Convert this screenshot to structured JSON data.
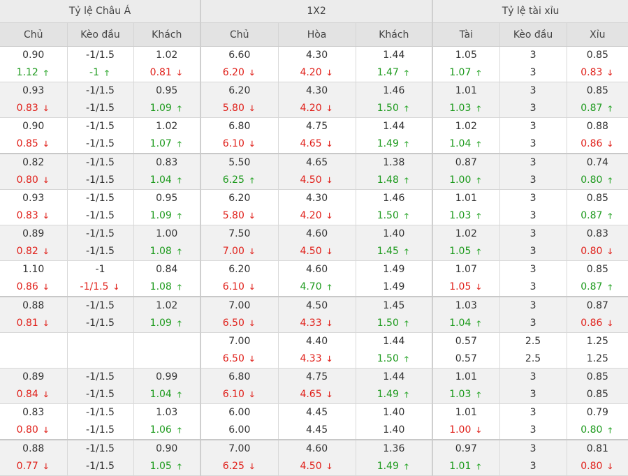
{
  "groups": [
    "Tỷ lệ Châu Á",
    "1X2",
    "Tỷ lệ tài xỉu"
  ],
  "columns": [
    "Chủ",
    "Kèo đầu",
    "Khách",
    "Chủ",
    "Hòa",
    "Khách",
    "Tài",
    "Kèo đầu",
    "Xỉu"
  ],
  "trend_icons": {
    "up": "arrow-up-icon",
    "down": "arrow-down-icon"
  },
  "colors": {
    "up": "#1d9a1d",
    "down": "#e0201a",
    "header_bg": "#e3e3e3",
    "row_alt_bg": "#f1f1f1"
  },
  "arrows": {
    "up": "🡑",
    "down": "🡓"
  },
  "rows": [
    {
      "open": [
        "0.90",
        "-1/1.5",
        "1.02",
        "6.60",
        "4.30",
        "1.44",
        "1.05",
        "3",
        "0.85"
      ],
      "close": [
        [
          "1.12",
          "up"
        ],
        [
          "-1",
          "up"
        ],
        [
          "0.81",
          "down"
        ],
        [
          "6.20",
          "down"
        ],
        [
          "4.20",
          "down"
        ],
        [
          "1.47",
          "up"
        ],
        [
          "1.07",
          "up"
        ],
        [
          "3",
          ""
        ],
        [
          "0.83",
          "down"
        ]
      ]
    },
    {
      "open": [
        "0.93",
        "-1/1.5",
        "0.95",
        "6.20",
        "4.30",
        "1.46",
        "1.01",
        "3",
        "0.85"
      ],
      "close": [
        [
          "0.83",
          "down"
        ],
        [
          "-1/1.5",
          ""
        ],
        [
          "1.09",
          "up"
        ],
        [
          "5.80",
          "down"
        ],
        [
          "4.20",
          "down"
        ],
        [
          "1.50",
          "up"
        ],
        [
          "1.03",
          "up"
        ],
        [
          "3",
          ""
        ],
        [
          "0.87",
          "up"
        ]
      ]
    },
    {
      "open": [
        "0.90",
        "-1/1.5",
        "1.02",
        "6.80",
        "4.75",
        "1.44",
        "1.02",
        "3",
        "0.88"
      ],
      "close": [
        [
          "0.85",
          "down"
        ],
        [
          "-1/1.5",
          ""
        ],
        [
          "1.07",
          "up"
        ],
        [
          "6.10",
          "down"
        ],
        [
          "4.65",
          "down"
        ],
        [
          "1.49",
          "up"
        ],
        [
          "1.04",
          "up"
        ],
        [
          "3",
          ""
        ],
        [
          "0.86",
          "down"
        ]
      ]
    },
    {
      "open": [
        "0.82",
        "-1/1.5",
        "0.83",
        "5.50",
        "4.65",
        "1.38",
        "0.87",
        "3",
        "0.74"
      ],
      "close": [
        [
          "0.80",
          "down"
        ],
        [
          "-1/1.5",
          ""
        ],
        [
          "1.04",
          "up"
        ],
        [
          "6.25",
          "up"
        ],
        [
          "4.50",
          "down"
        ],
        [
          "1.48",
          "up"
        ],
        [
          "1.00",
          "up"
        ],
        [
          "3",
          ""
        ],
        [
          "0.80",
          "up"
        ]
      ]
    },
    {
      "open": [
        "0.93",
        "-1/1.5",
        "0.95",
        "6.20",
        "4.30",
        "1.46",
        "1.01",
        "3",
        "0.85"
      ],
      "close": [
        [
          "0.83",
          "down"
        ],
        [
          "-1/1.5",
          ""
        ],
        [
          "1.09",
          "up"
        ],
        [
          "5.80",
          "down"
        ],
        [
          "4.20",
          "down"
        ],
        [
          "1.50",
          "up"
        ],
        [
          "1.03",
          "up"
        ],
        [
          "3",
          ""
        ],
        [
          "0.87",
          "up"
        ]
      ]
    },
    {
      "open": [
        "0.89",
        "-1/1.5",
        "1.00",
        "7.50",
        "4.60",
        "1.40",
        "1.02",
        "3",
        "0.83"
      ],
      "close": [
        [
          "0.82",
          "down"
        ],
        [
          "-1/1.5",
          ""
        ],
        [
          "1.08",
          "up"
        ],
        [
          "7.00",
          "down"
        ],
        [
          "4.50",
          "down"
        ],
        [
          "1.45",
          "up"
        ],
        [
          "1.05",
          "up"
        ],
        [
          "3",
          ""
        ],
        [
          "0.80",
          "down"
        ]
      ]
    },
    {
      "open": [
        "1.10",
        "-1",
        "0.84",
        "6.20",
        "4.60",
        "1.49",
        "1.07",
        "3",
        "0.85"
      ],
      "close": [
        [
          "0.86",
          "down"
        ],
        [
          "-1/1.5",
          "down"
        ],
        [
          "1.08",
          "up"
        ],
        [
          "6.10",
          "down"
        ],
        [
          "4.70",
          "up"
        ],
        [
          "1.49",
          ""
        ],
        [
          "1.05",
          "down"
        ],
        [
          "3",
          ""
        ],
        [
          "0.87",
          "up"
        ]
      ]
    },
    {
      "open": [
        "0.88",
        "-1/1.5",
        "1.02",
        "7.00",
        "4.50",
        "1.45",
        "1.03",
        "3",
        "0.87"
      ],
      "close": [
        [
          "0.81",
          "down"
        ],
        [
          "-1/1.5",
          ""
        ],
        [
          "1.09",
          "up"
        ],
        [
          "6.50",
          "down"
        ],
        [
          "4.33",
          "down"
        ],
        [
          "1.50",
          "up"
        ],
        [
          "1.04",
          "up"
        ],
        [
          "3",
          ""
        ],
        [
          "0.86",
          "down"
        ]
      ]
    },
    {
      "open": [
        "",
        "",
        "",
        "7.00",
        "4.40",
        "1.44",
        "0.57",
        "2.5",
        "1.25"
      ],
      "close": [
        [
          "",
          ""
        ],
        [
          "",
          ""
        ],
        [
          "",
          ""
        ],
        [
          "6.50",
          "down"
        ],
        [
          "4.33",
          "down"
        ],
        [
          "1.50",
          "up"
        ],
        [
          "0.57",
          ""
        ],
        [
          "2.5",
          ""
        ],
        [
          "1.25",
          ""
        ]
      ]
    },
    {
      "open": [
        "0.89",
        "-1/1.5",
        "0.99",
        "6.80",
        "4.75",
        "1.44",
        "1.01",
        "3",
        "0.85"
      ],
      "close": [
        [
          "0.84",
          "down"
        ],
        [
          "-1/1.5",
          ""
        ],
        [
          "1.04",
          "up"
        ],
        [
          "6.10",
          "down"
        ],
        [
          "4.65",
          "down"
        ],
        [
          "1.49",
          "up"
        ],
        [
          "1.03",
          "up"
        ],
        [
          "3",
          ""
        ],
        [
          "0.85",
          ""
        ]
      ]
    },
    {
      "open": [
        "0.83",
        "-1/1.5",
        "1.03",
        "6.00",
        "4.45",
        "1.40",
        "1.01",
        "3",
        "0.79"
      ],
      "close": [
        [
          "0.80",
          "down"
        ],
        [
          "-1/1.5",
          ""
        ],
        [
          "1.06",
          "up"
        ],
        [
          "6.00",
          ""
        ],
        [
          "4.45",
          ""
        ],
        [
          "1.40",
          ""
        ],
        [
          "1.00",
          "down"
        ],
        [
          "3",
          ""
        ],
        [
          "0.80",
          "up"
        ]
      ]
    },
    {
      "open": [
        "0.88",
        "-1/1.5",
        "0.90",
        "7.00",
        "4.60",
        "1.36",
        "0.97",
        "3",
        "0.81"
      ],
      "close": [
        [
          "0.77",
          "down"
        ],
        [
          "-1/1.5",
          ""
        ],
        [
          "1.05",
          "up"
        ],
        [
          "6.25",
          "down"
        ],
        [
          "4.50",
          "down"
        ],
        [
          "1.49",
          "up"
        ],
        [
          "1.01",
          "up"
        ],
        [
          "3",
          ""
        ],
        [
          "0.80",
          "down"
        ]
      ]
    }
  ]
}
